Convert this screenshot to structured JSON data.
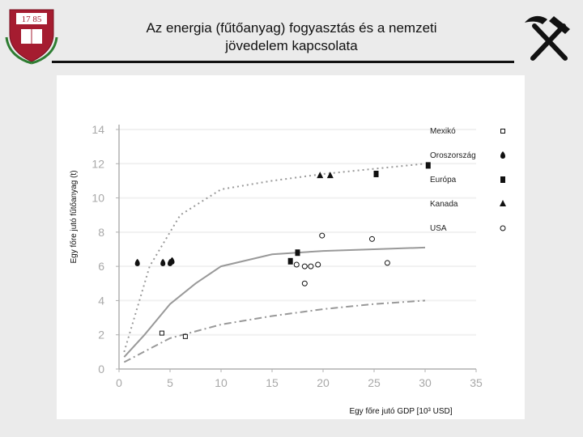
{
  "slide": {
    "title_line1": "Az energia (fűtőanyag) fogyasztás és a nemzeti",
    "title_line2": "jövedelem kapcsolata",
    "logo_left_text": "17 85",
    "logo_right_icon": "hammer-and-pick"
  },
  "chart_data": {
    "type": "scatter",
    "xlabel": "Egy főre jutó GDP [10³ USD]",
    "ylabel": "Egy főre jutó fűtőanyag (t)",
    "xlim": [
      0,
      35
    ],
    "ylim": [
      0,
      14
    ],
    "x_ticks": [
      0,
      5,
      10,
      15,
      20,
      25,
      30,
      35
    ],
    "y_ticks": [
      0,
      2,
      4,
      6,
      8,
      10,
      12,
      14
    ],
    "grid": "horizontal",
    "legend_position": "top-right",
    "series": [
      {
        "name": "Mexikó",
        "marker": "open-square",
        "points": [
          [
            4.2,
            2.1
          ],
          [
            6.5,
            1.9
          ]
        ]
      },
      {
        "name": "Oroszország",
        "marker": "filled-drop",
        "points": [
          [
            1.8,
            6.2
          ],
          [
            4.3,
            6.2
          ],
          [
            5.0,
            6.2
          ],
          [
            5.2,
            6.3
          ]
        ]
      },
      {
        "name": "Európa",
        "marker": "filled-square",
        "points": [
          [
            16.8,
            6.3
          ],
          [
            17.5,
            6.8
          ],
          [
            25.2,
            11.4
          ],
          [
            30.3,
            11.9
          ]
        ]
      },
      {
        "name": "Kanada",
        "marker": "filled-triangle",
        "points": [
          [
            19.7,
            11.3
          ],
          [
            20.7,
            11.3
          ]
        ]
      },
      {
        "name": "USA",
        "marker": "open-circle",
        "points": [
          [
            17.4,
            6.1
          ],
          [
            18.2,
            6.0
          ],
          [
            18.8,
            6.0
          ],
          [
            19.5,
            6.1
          ],
          [
            19.9,
            7.8
          ],
          [
            24.8,
            7.6
          ],
          [
            26.3,
            6.2
          ],
          [
            18.2,
            5.0
          ]
        ]
      }
    ],
    "trend_lines": [
      {
        "style": "dotted",
        "points": [
          [
            0.5,
            1.0
          ],
          [
            3,
            6
          ],
          [
            6,
            9
          ],
          [
            10,
            10.5
          ],
          [
            15,
            11
          ],
          [
            20,
            11.4
          ],
          [
            25,
            11.7
          ],
          [
            30,
            12.0
          ]
        ]
      },
      {
        "style": "solid",
        "points": [
          [
            0.5,
            0.7
          ],
          [
            2.5,
            2.0
          ],
          [
            5,
            3.8
          ],
          [
            7.5,
            5.0
          ],
          [
            10,
            6.0
          ],
          [
            15,
            6.7
          ],
          [
            20,
            6.9
          ],
          [
            25,
            7.0
          ],
          [
            30,
            7.1
          ]
        ]
      },
      {
        "style": "dash-dot",
        "points": [
          [
            0.5,
            0.4
          ],
          [
            5,
            1.8
          ],
          [
            10,
            2.6
          ],
          [
            15,
            3.1
          ],
          [
            20,
            3.5
          ],
          [
            25,
            3.8
          ],
          [
            30,
            4.0
          ]
        ]
      }
    ]
  },
  "colors": {
    "background": "#ebebeb",
    "panel": "#ffffff",
    "axis": "#b0b0b0",
    "tick_text": "#a8a8a8",
    "curve": "#999999",
    "marker": "#111111",
    "crest": "#a51c30"
  }
}
